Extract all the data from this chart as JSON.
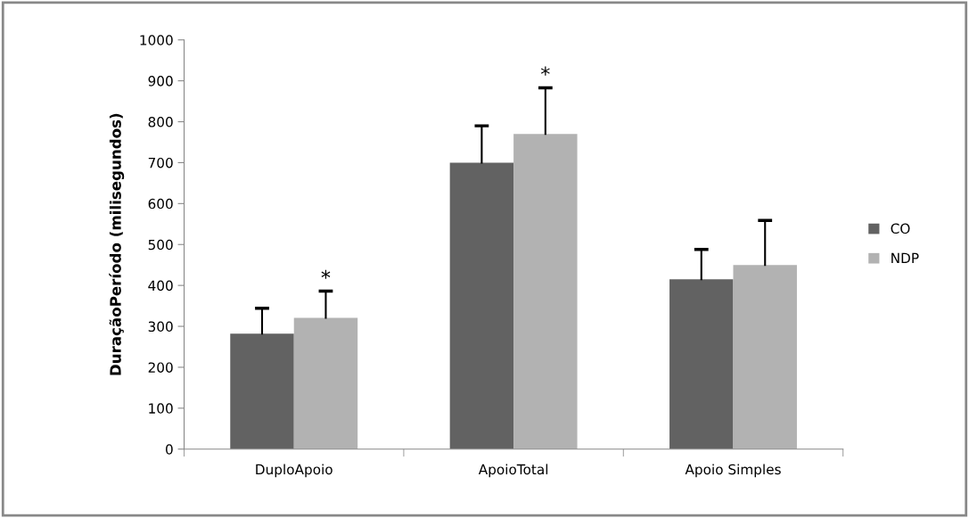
{
  "chart_data": {
    "type": "bar",
    "ylabel": "DuraçãoPeríodo (milisegundos)",
    "categories": [
      "DuploApoio",
      "ApoioTotal",
      "Apoio Simples"
    ],
    "series": [
      {
        "name": "CO",
        "color": "#626262",
        "values": [
          282,
          700,
          415
        ],
        "errors": [
          62,
          90,
          73
        ]
      },
      {
        "name": "NDP",
        "color": "#b2b2b2",
        "values": [
          321,
          770,
          450
        ],
        "errors": [
          65,
          113,
          109
        ]
      }
    ],
    "ylim": [
      0,
      1000
    ],
    "yticks": [
      0,
      100,
      200,
      300,
      400,
      500,
      600,
      700,
      800,
      900,
      1000
    ],
    "annotations": [
      "*",
      "*"
    ],
    "grid": false,
    "legend": "right"
  }
}
